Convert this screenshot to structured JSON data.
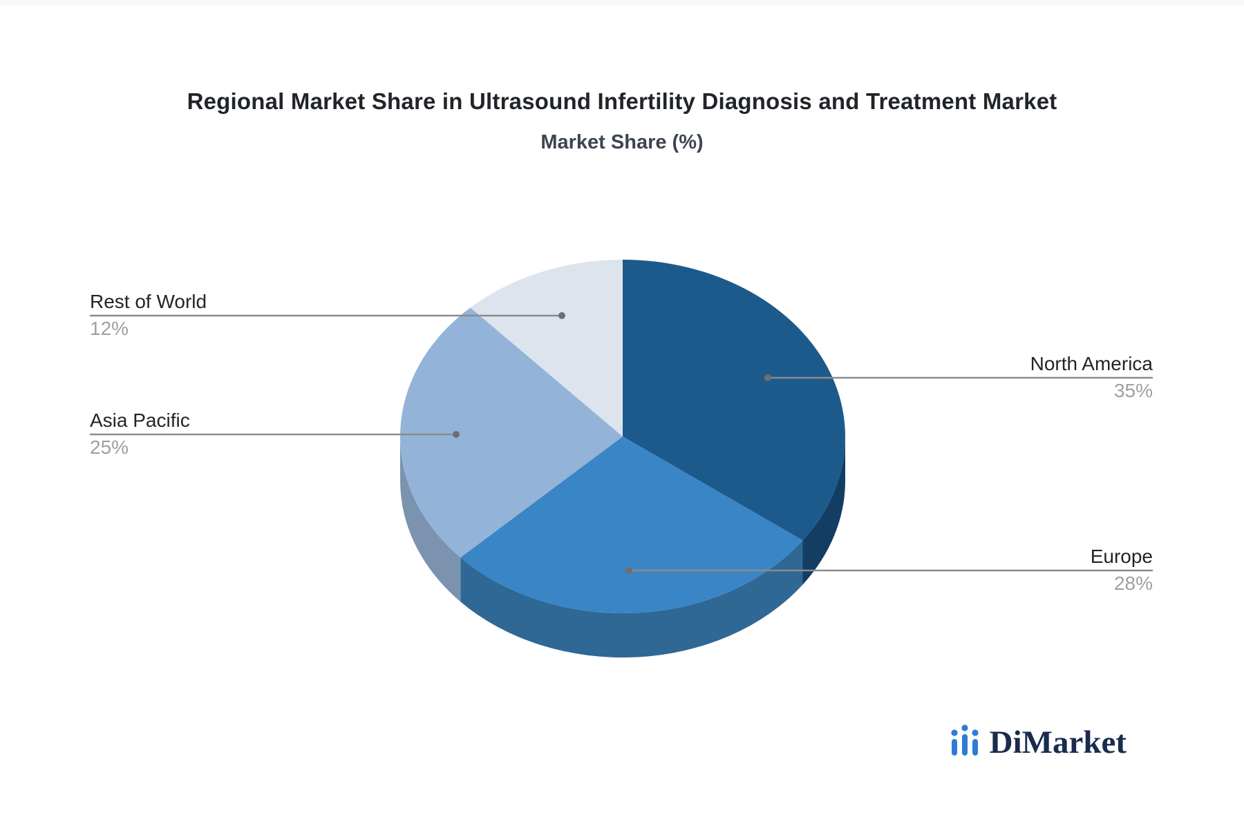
{
  "page": {
    "title": "Regional Market Share in Ultrasound Infertility Diagnosis and Treatment Market",
    "subtitle": "Market Share (%)"
  },
  "chart_data": {
    "type": "pie",
    "style": "3d",
    "title": "Regional Market Share in Ultrasound Infertility Diagnosis and Treatment Market",
    "subtitle": "Market Share (%)",
    "unit": "%",
    "direction": "clockwise",
    "start_angle_deg": 0,
    "legend": "none",
    "label_style": "callout-leader-lines",
    "categories": [
      "North America",
      "Europe",
      "Asia Pacific",
      "Rest of World"
    ],
    "values": [
      35,
      28,
      25,
      12
    ],
    "slices": [
      {
        "label": "North America",
        "value": 35,
        "value_text": "35%",
        "color": "#1d5a8c",
        "side_color": "#133d63"
      },
      {
        "label": "Europe",
        "value": 28,
        "value_text": "28%",
        "color": "#3a85c6",
        "side_color": "#2f6795"
      },
      {
        "label": "Asia Pacific",
        "value": 25,
        "value_text": "25%",
        "color": "#93b4d8",
        "side_color": "#7b93af"
      },
      {
        "label": "Rest of World",
        "value": 12,
        "value_text": "12%",
        "color": "#dde4ee",
        "side_color": "#b9c4d4"
      }
    ]
  },
  "branding": {
    "logo_text": "DiMarket",
    "logo_icon": "bar-chart-dots-icon",
    "logo_icon_color": "#2e7cd6",
    "logo_text_color": "#1b2b4d"
  },
  "colors": {
    "background": "#ffffff",
    "page_strip": "#f8f9fa",
    "title_text": "#212529",
    "subtitle_text": "#3d4451",
    "label_text": "#212529",
    "value_text": "#9da0a4",
    "leader_line": "#8b8b8b",
    "leader_dot": "#6e6e6e"
  }
}
